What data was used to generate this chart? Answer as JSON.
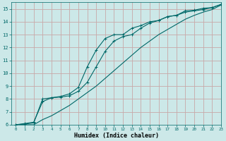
{
  "xlabel": "Humidex (Indice chaleur)",
  "ylabel": "",
  "background_color": "#cce8e8",
  "grid_color": "#c8a8a8",
  "line_color": "#006868",
  "xlim": [
    -0.5,
    23
  ],
  "ylim": [
    6,
    15.5
  ],
  "xticks": [
    0,
    1,
    2,
    3,
    4,
    5,
    6,
    7,
    8,
    9,
    10,
    11,
    12,
    13,
    14,
    15,
    16,
    17,
    18,
    19,
    20,
    21,
    22,
    23
  ],
  "yticks": [
    6,
    7,
    8,
    9,
    10,
    11,
    12,
    13,
    14,
    15
  ],
  "line1_x": [
    0,
    1,
    2,
    3,
    4,
    5,
    6,
    7,
    8,
    9,
    10,
    11,
    12,
    13,
    14,
    15,
    16,
    17,
    18,
    19,
    20,
    21,
    22,
    23
  ],
  "line1_y": [
    6.0,
    6.1,
    6.2,
    7.8,
    8.1,
    8.2,
    8.4,
    8.9,
    10.5,
    11.8,
    12.7,
    13.0,
    13.0,
    13.5,
    13.7,
    14.0,
    14.1,
    14.4,
    14.5,
    14.85,
    14.9,
    15.05,
    15.1,
    15.35
  ],
  "line2_x": [
    0,
    1,
    2,
    3,
    4,
    5,
    6,
    7,
    8,
    9,
    10,
    11,
    12,
    13,
    14,
    15,
    16,
    17,
    18,
    19,
    20,
    21,
    22,
    23
  ],
  "line2_y": [
    6.0,
    6.05,
    6.15,
    8.0,
    8.1,
    8.15,
    8.25,
    8.6,
    9.3,
    10.5,
    11.7,
    12.5,
    12.85,
    13.0,
    13.5,
    13.9,
    14.1,
    14.4,
    14.5,
    14.75,
    14.85,
    14.95,
    15.1,
    15.35
  ],
  "line3_x": [
    0,
    1,
    2,
    3,
    4,
    5,
    6,
    7,
    8,
    9,
    10,
    11,
    12,
    13,
    14,
    15,
    16,
    17,
    18,
    19,
    20,
    21,
    22,
    23
  ],
  "line3_y": [
    6.0,
    6.0,
    6.0,
    6.4,
    6.7,
    7.1,
    7.5,
    8.0,
    8.5,
    9.0,
    9.6,
    10.2,
    10.8,
    11.4,
    12.0,
    12.5,
    13.0,
    13.4,
    13.8,
    14.2,
    14.5,
    14.75,
    14.95,
    15.3
  ]
}
